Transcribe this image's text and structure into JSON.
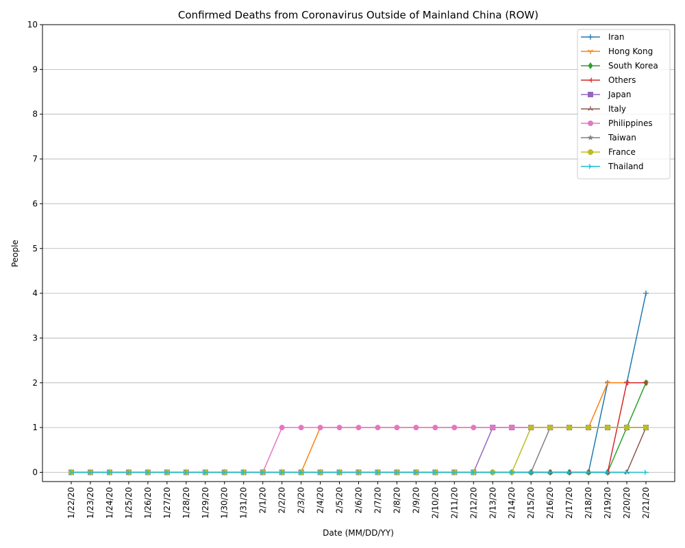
{
  "chart_data": {
    "type": "line",
    "title": "Confirmed Deaths from Coronavirus Outside of Mainland China (ROW)",
    "xlabel": "Date (MM/DD/YY)",
    "ylabel": "People",
    "ylim": [
      0,
      10
    ],
    "yticks": [
      0,
      1,
      2,
      3,
      4,
      5,
      6,
      7,
      8,
      9,
      10
    ],
    "grid": "y",
    "legend": "top-right",
    "categories": [
      "1/22/20",
      "1/23/20",
      "1/24/20",
      "1/25/20",
      "1/26/20",
      "1/27/20",
      "1/28/20",
      "1/29/20",
      "1/30/20",
      "1/31/20",
      "2/1/20",
      "2/2/20",
      "2/3/20",
      "2/4/20",
      "2/5/20",
      "2/6/20",
      "2/7/20",
      "2/8/20",
      "2/9/20",
      "2/10/20",
      "2/11/20",
      "2/12/20",
      "2/13/20",
      "2/14/20",
      "2/15/20",
      "2/16/20",
      "2/17/20",
      "2/18/20",
      "2/19/20",
      "2/20/20",
      "2/21/20"
    ],
    "series": [
      {
        "name": "Iran",
        "color": "#1f77b4",
        "marker": "plus",
        "values": [
          0,
          0,
          0,
          0,
          0,
          0,
          0,
          0,
          0,
          0,
          0,
          0,
          0,
          0,
          0,
          0,
          0,
          0,
          0,
          0,
          0,
          0,
          0,
          0,
          0,
          0,
          0,
          0,
          2,
          2,
          4
        ]
      },
      {
        "name": "Hong Kong",
        "color": "#ff7f0e",
        "marker": "tri",
        "values": [
          0,
          0,
          0,
          0,
          0,
          0,
          0,
          0,
          0,
          0,
          0,
          0,
          0,
          1,
          1,
          1,
          1,
          1,
          1,
          1,
          1,
          1,
          1,
          1,
          1,
          1,
          1,
          1,
          2,
          2,
          2
        ]
      },
      {
        "name": "South Korea",
        "color": "#2ca02c",
        "marker": "diamond",
        "values": [
          0,
          0,
          0,
          0,
          0,
          0,
          0,
          0,
          0,
          0,
          0,
          0,
          0,
          0,
          0,
          0,
          0,
          0,
          0,
          0,
          0,
          0,
          0,
          0,
          0,
          0,
          0,
          0,
          0,
          1,
          2
        ]
      },
      {
        "name": "Others",
        "color": "#d62728",
        "marker": "tri-right",
        "values": [
          0,
          0,
          0,
          0,
          0,
          0,
          0,
          0,
          0,
          0,
          0,
          0,
          0,
          0,
          0,
          0,
          0,
          0,
          0,
          0,
          0,
          0,
          0,
          0,
          0,
          0,
          0,
          0,
          0,
          2,
          2
        ]
      },
      {
        "name": "Japan",
        "color": "#9467bd",
        "marker": "square",
        "values": [
          0,
          0,
          0,
          0,
          0,
          0,
          0,
          0,
          0,
          0,
          0,
          0,
          0,
          0,
          0,
          0,
          0,
          0,
          0,
          0,
          0,
          0,
          1,
          1,
          1,
          1,
          1,
          1,
          1,
          1,
          1
        ]
      },
      {
        "name": "Italy",
        "color": "#8c564b",
        "marker": "tri-up",
        "values": [
          0,
          0,
          0,
          0,
          0,
          0,
          0,
          0,
          0,
          0,
          0,
          0,
          0,
          0,
          0,
          0,
          0,
          0,
          0,
          0,
          0,
          0,
          0,
          0,
          0,
          0,
          0,
          0,
          0,
          0,
          1
        ]
      },
      {
        "name": "Philippines",
        "color": "#e377c2",
        "marker": "circle",
        "values": [
          0,
          0,
          0,
          0,
          0,
          0,
          0,
          0,
          0,
          0,
          0,
          1,
          1,
          1,
          1,
          1,
          1,
          1,
          1,
          1,
          1,
          1,
          1,
          1,
          1,
          1,
          1,
          1,
          1,
          1,
          1
        ]
      },
      {
        "name": "Taiwan",
        "color": "#7f7f7f",
        "marker": "star",
        "values": [
          0,
          0,
          0,
          0,
          0,
          0,
          0,
          0,
          0,
          0,
          0,
          0,
          0,
          0,
          0,
          0,
          0,
          0,
          0,
          0,
          0,
          0,
          0,
          0,
          0,
          1,
          1,
          1,
          1,
          1,
          1
        ]
      },
      {
        "name": "France",
        "color": "#bcbd22",
        "marker": "octagon",
        "values": [
          0,
          0,
          0,
          0,
          0,
          0,
          0,
          0,
          0,
          0,
          0,
          0,
          0,
          0,
          0,
          0,
          0,
          0,
          0,
          0,
          0,
          0,
          0,
          0,
          1,
          1,
          1,
          1,
          1,
          1,
          1
        ]
      },
      {
        "name": "Thailand",
        "color": "#17becf",
        "marker": "tri-left",
        "values": [
          0,
          0,
          0,
          0,
          0,
          0,
          0,
          0,
          0,
          0,
          0,
          0,
          0,
          0,
          0,
          0,
          0,
          0,
          0,
          0,
          0,
          0,
          0,
          0,
          0,
          0,
          0,
          0,
          0,
          0,
          0
        ]
      }
    ]
  }
}
